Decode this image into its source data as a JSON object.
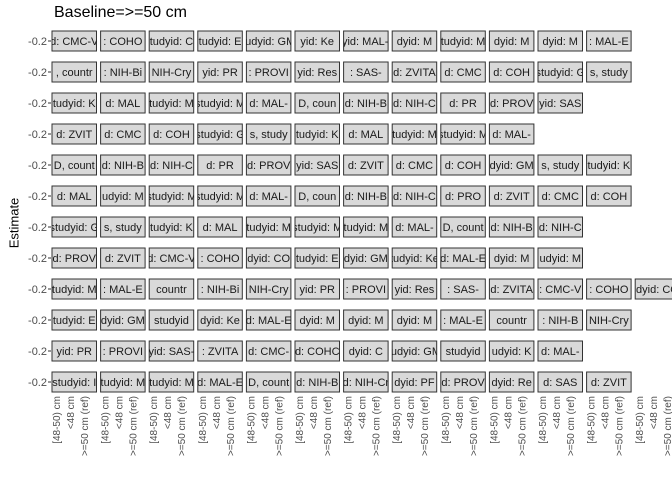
{
  "chart_data": {
    "type": "scatter",
    "title": "Baseline=>=50 cm",
    "ylabel": "Estimate",
    "ytick": "-0.2",
    "categories": [
      "[48-50) cm",
      "<48 cm",
      ">=50 cm (ref)"
    ],
    "panel_rows": [
      [
        "d: CMC-V",
        ": COHO",
        "tudyid: C",
        "tudyid: E",
        "tudyid: GM",
        "yid: Ke",
        "dyid: MAL-E",
        "dyid: M",
        "tudyid: M",
        "dyid: M",
        "dyid: M",
        ": MAL-E"
      ],
      [
        ", countr",
        ": NIH-Bi",
        "NIH-Cry",
        "yid: PR",
        ": PROVI",
        "yid: Res",
        ": SAS-",
        "d: ZVITA",
        "d: CMC",
        "d: COH",
        "studyid: G",
        "s, study"
      ],
      [
        "tudyid: K",
        "d: MAL",
        "tudyid: M",
        "studyid: M",
        "d: MAL-",
        "D, coun",
        "d: NIH-B",
        "d: NIH-C",
        "d: PR",
        "d: PROV",
        "yid: SAS"
      ],
      [
        "d: ZVIT",
        "d: CMC",
        "d: COH",
        "studyid: G",
        "s, study",
        "tudyid: K",
        "d: MAL",
        "tudyid: M",
        "studyid: M",
        "d: MAL-"
      ],
      [
        "D, count",
        "d: NIH-B",
        "d: NIH-C",
        "d: PR",
        "d: PROV",
        "yid: SAS",
        "d: ZVIT",
        "d: CMC",
        "d: COH",
        "dyid: GM",
        "s, study",
        "tudyid: K"
      ],
      [
        "d: MAL",
        "udyid: M",
        "studyid: M",
        "studyid: M",
        "d: MAL-",
        "D, coun",
        "d: NIH-B",
        "d: NIH-C",
        "d: PRO",
        "d: ZVIT",
        "d: CMC",
        "d: COH"
      ],
      [
        "studyid: G",
        "s, study",
        "tudyid: K",
        "d: MAL",
        "tudyid: M",
        "studyid: M",
        "tudyid: M",
        "d: MAL-",
        "D, count",
        "d: NIH-B",
        "d: NIH-C"
      ],
      [
        "d: PROV",
        "d: ZVIT",
        "d: CMC-V",
        ": COHO",
        "dyid: CO",
        "tudyid: E",
        "dyid: GM",
        "tudyid: Ke",
        "d: MAL-E",
        "dyid: M",
        "udyid: M"
      ],
      [
        "tudyid: M",
        ": MAL-E",
        "countr",
        ": NIH-Bi",
        "NIH-Cry",
        "yid: PR",
        ": PROVI",
        "yid: Res",
        ": SAS-",
        "d: ZVITA",
        ": CMC-V",
        ": COHO",
        "dyid: CO"
      ],
      [
        "tudyid: E",
        "dyid: GM",
        "studyid",
        "dyid: Ke",
        "d: MAL-E",
        "dyid: M",
        "dyid: M",
        "dyid: M",
        ": MAL-E",
        "countr",
        ": NIH-B",
        "NIH-Cry"
      ],
      [
        "yid: PR",
        ": PROVI",
        "yid: SAS-",
        ": ZVITA",
        "d: CMC-",
        "d: COHC",
        "dyid: C",
        "tudyid: GM",
        "studyid",
        "udyid: K",
        "d: MAL-"
      ],
      [
        "studyid: I",
        "tudyid: M",
        "tudyid: M",
        "d: MAL-E",
        "D, count",
        "d: NIH-B",
        "d: NIH-Cr",
        "dyid: PF",
        "d: PROV",
        "dyid: Re",
        "d: SAS",
        "d: ZVIT"
      ]
    ]
  }
}
